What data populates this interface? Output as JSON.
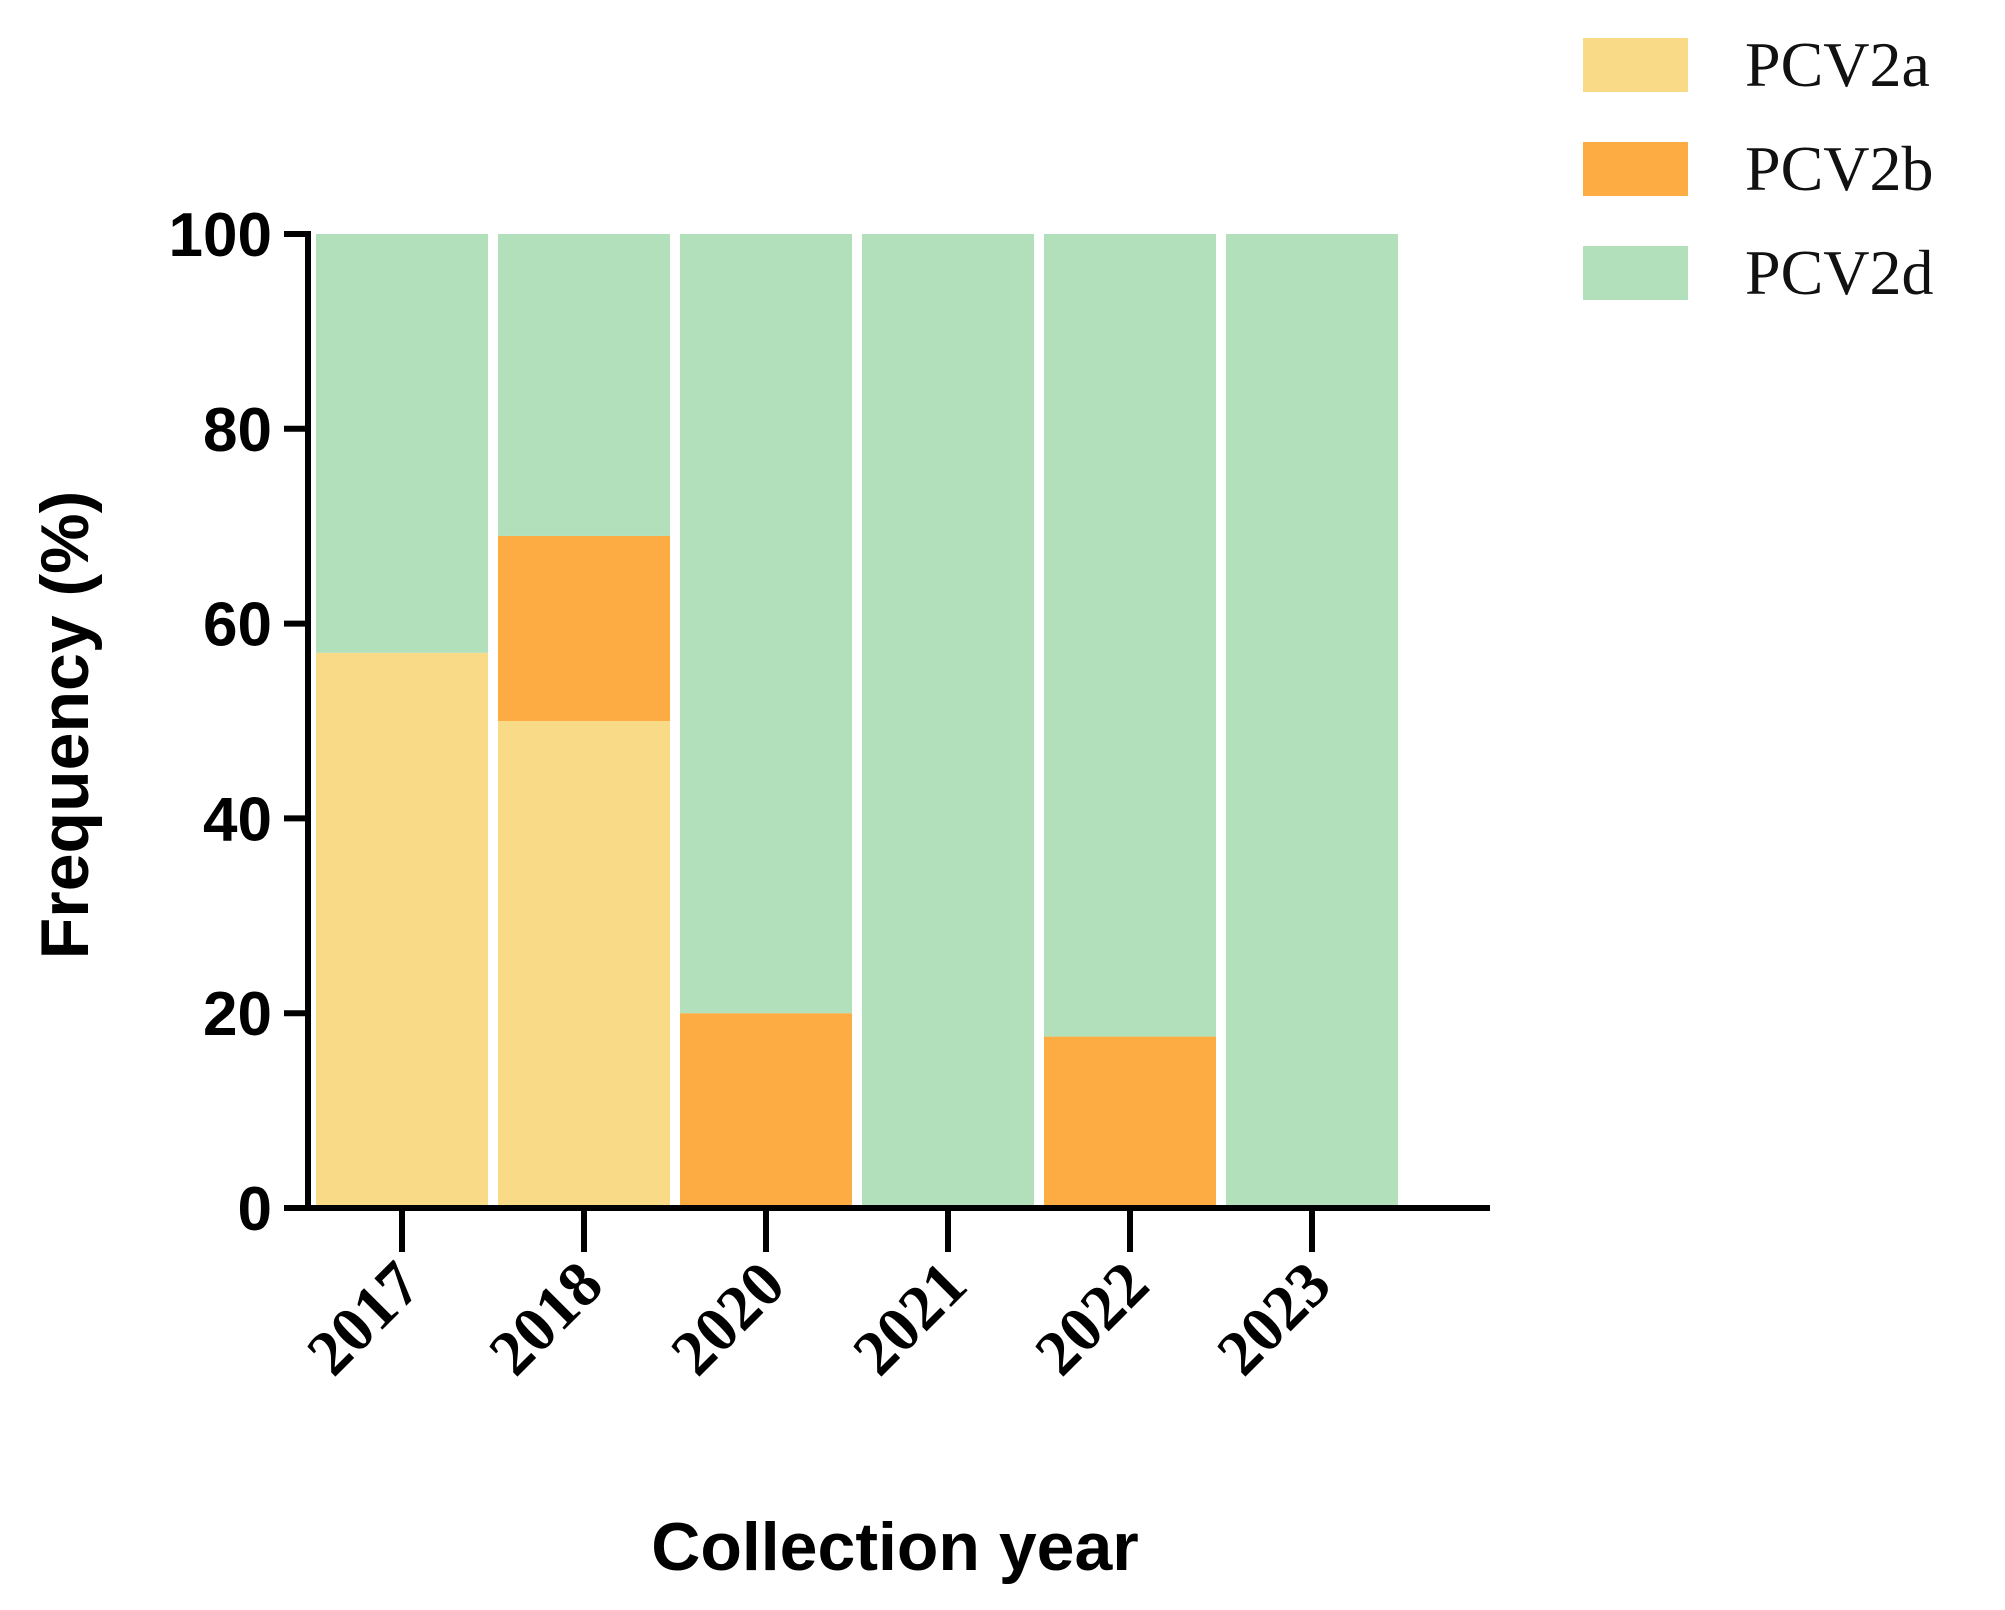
{
  "chart_data": {
    "type": "bar",
    "stacked": true,
    "categories": [
      "2017",
      "2018",
      "2020",
      "2021",
      "2022",
      "2023"
    ],
    "series": [
      {
        "name": "PCV2a",
        "color": "#F9DA86",
        "values": [
          57,
          50,
          0,
          0,
          0,
          0
        ]
      },
      {
        "name": "PCV2b",
        "color": "#FDAC44",
        "values": [
          0,
          19,
          20,
          0,
          17.6,
          0
        ]
      },
      {
        "name": "PCV2d",
        "color": "#B1E0BA",
        "values": [
          43,
          31,
          80,
          100,
          82.4,
          100
        ]
      }
    ],
    "xlabel": "Collection year",
    "ylabel": "Frequency (%)",
    "ylim": [
      0,
      100
    ],
    "yticks": [
      "0",
      "20",
      "40",
      "60",
      "80",
      "100"
    ],
    "grid": false,
    "legend_position": "top-right"
  }
}
